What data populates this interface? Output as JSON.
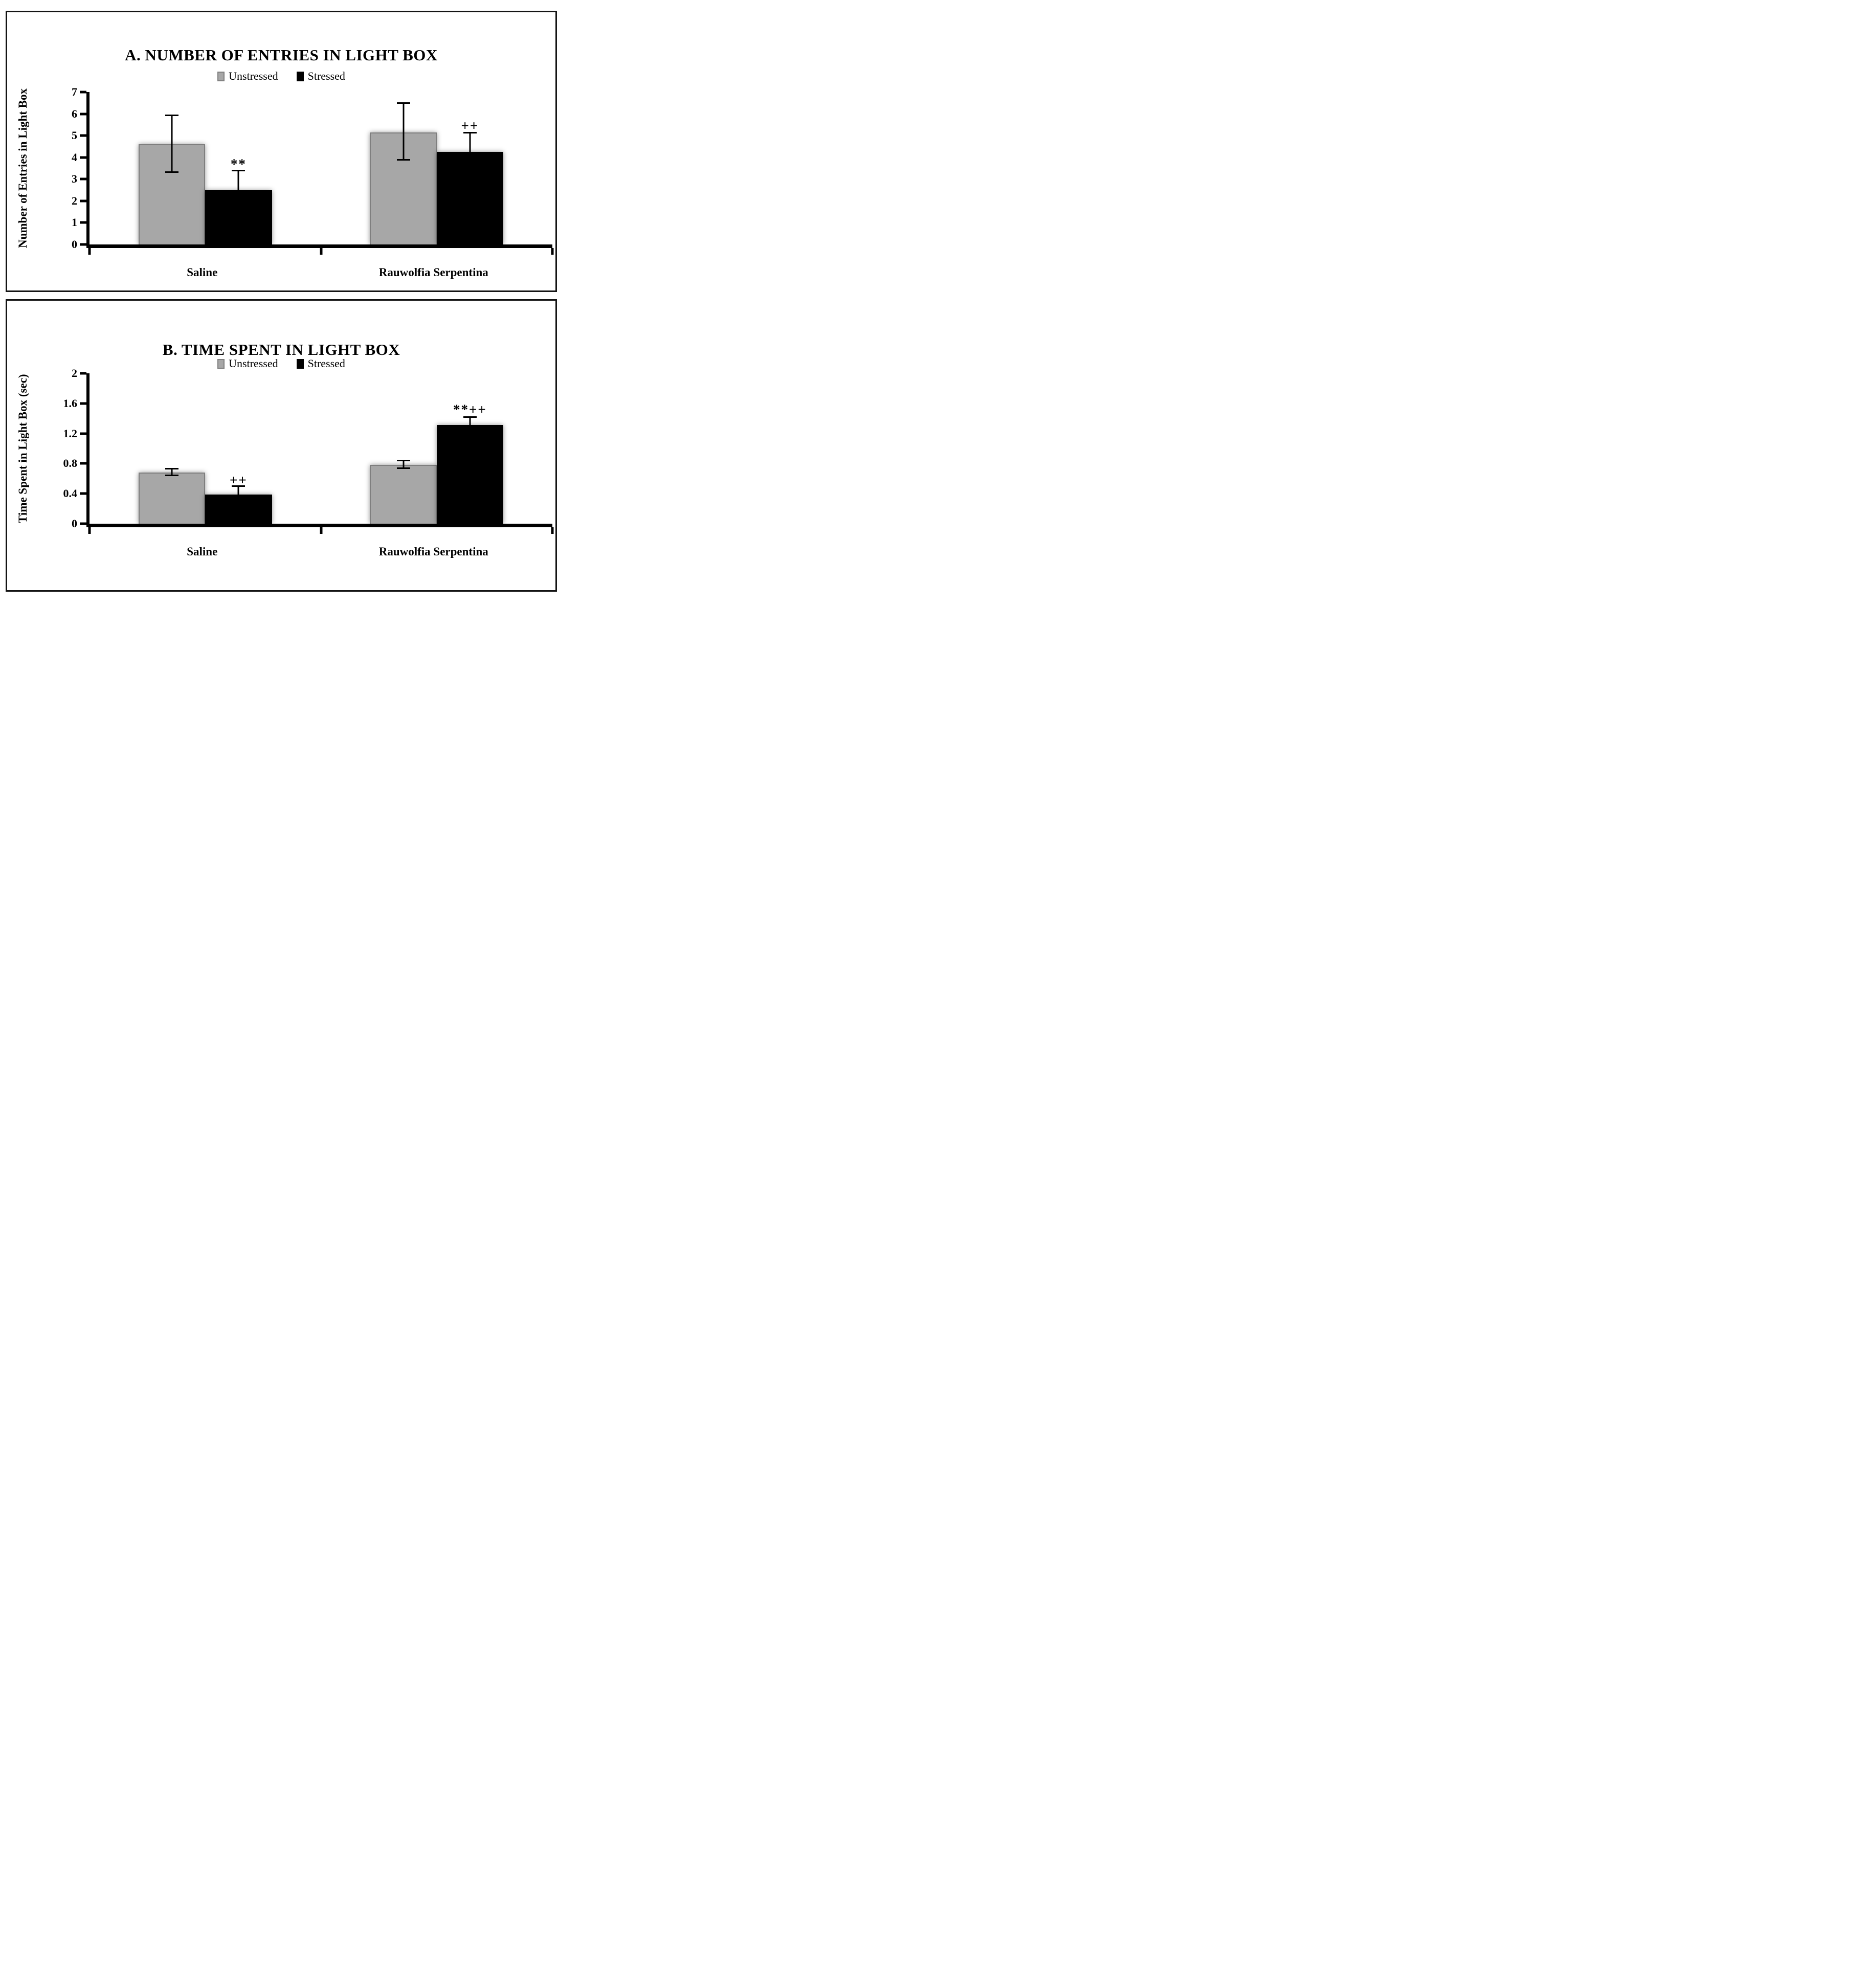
{
  "legend": {
    "unstressed": "Unstressed",
    "stressed": "Stressed"
  },
  "colors": {
    "unstressed_fill": "#A7A7A7",
    "unstressed_border": "#7F7F7F",
    "stressed_fill": "#000000",
    "axis": "#000000",
    "panel_border": "#141414"
  },
  "chart_data": [
    {
      "type": "bar",
      "title": "A. NUMBER OF ENTRIES IN LIGHT BOX",
      "xlabel": "",
      "ylabel": "Number of Entries in Light Box",
      "categories": [
        "Saline",
        "Rauwolfia Serpentina"
      ],
      "series": [
        {
          "name": "Unstressed",
          "values": [
            4.6,
            5.15
          ],
          "error_low": [
            3.3,
            3.85
          ],
          "error_high": [
            5.9,
            6.45
          ]
        },
        {
          "name": "Stressed",
          "values": [
            2.5,
            4.25
          ],
          "error_low": [
            2.5,
            4.25
          ],
          "error_high": [
            3.35,
            5.1
          ]
        }
      ],
      "annotations": [
        {
          "category": 0,
          "series": 1,
          "text": "**",
          "y": 3.7
        },
        {
          "category": 1,
          "series": 1,
          "text": "++",
          "y": 5.45
        }
      ],
      "ylim": [
        0,
        7
      ],
      "yticks": [
        0,
        1,
        2,
        3,
        4,
        5,
        6,
        7
      ],
      "grid": false,
      "legend_position": "top-center"
    },
    {
      "type": "bar",
      "title": "B. TIME SPENT IN LIGHT BOX",
      "xlabel": "",
      "ylabel": "Time Spent in Light Box (sec)",
      "categories": [
        "Saline",
        "Rauwolfia Serpentina"
      ],
      "series": [
        {
          "name": "Unstressed",
          "values": [
            0.68,
            0.78
          ],
          "error_low": [
            0.63,
            0.73
          ],
          "error_high": [
            0.72,
            0.83
          ]
        },
        {
          "name": "Stressed",
          "values": [
            0.39,
            1.31
          ],
          "error_low": [
            0.39,
            1.31
          ],
          "error_high": [
            0.49,
            1.41
          ]
        }
      ],
      "annotations": [
        {
          "category": 0,
          "series": 1,
          "text": "++",
          "y": 0.58
        },
        {
          "category": 1,
          "series": 1,
          "text": "**++",
          "y": 1.52
        }
      ],
      "ylim": [
        0,
        2
      ],
      "yticks": [
        0,
        0.4,
        0.8,
        1.2,
        1.6,
        2
      ],
      "grid": false,
      "legend_position": "top-center"
    }
  ]
}
